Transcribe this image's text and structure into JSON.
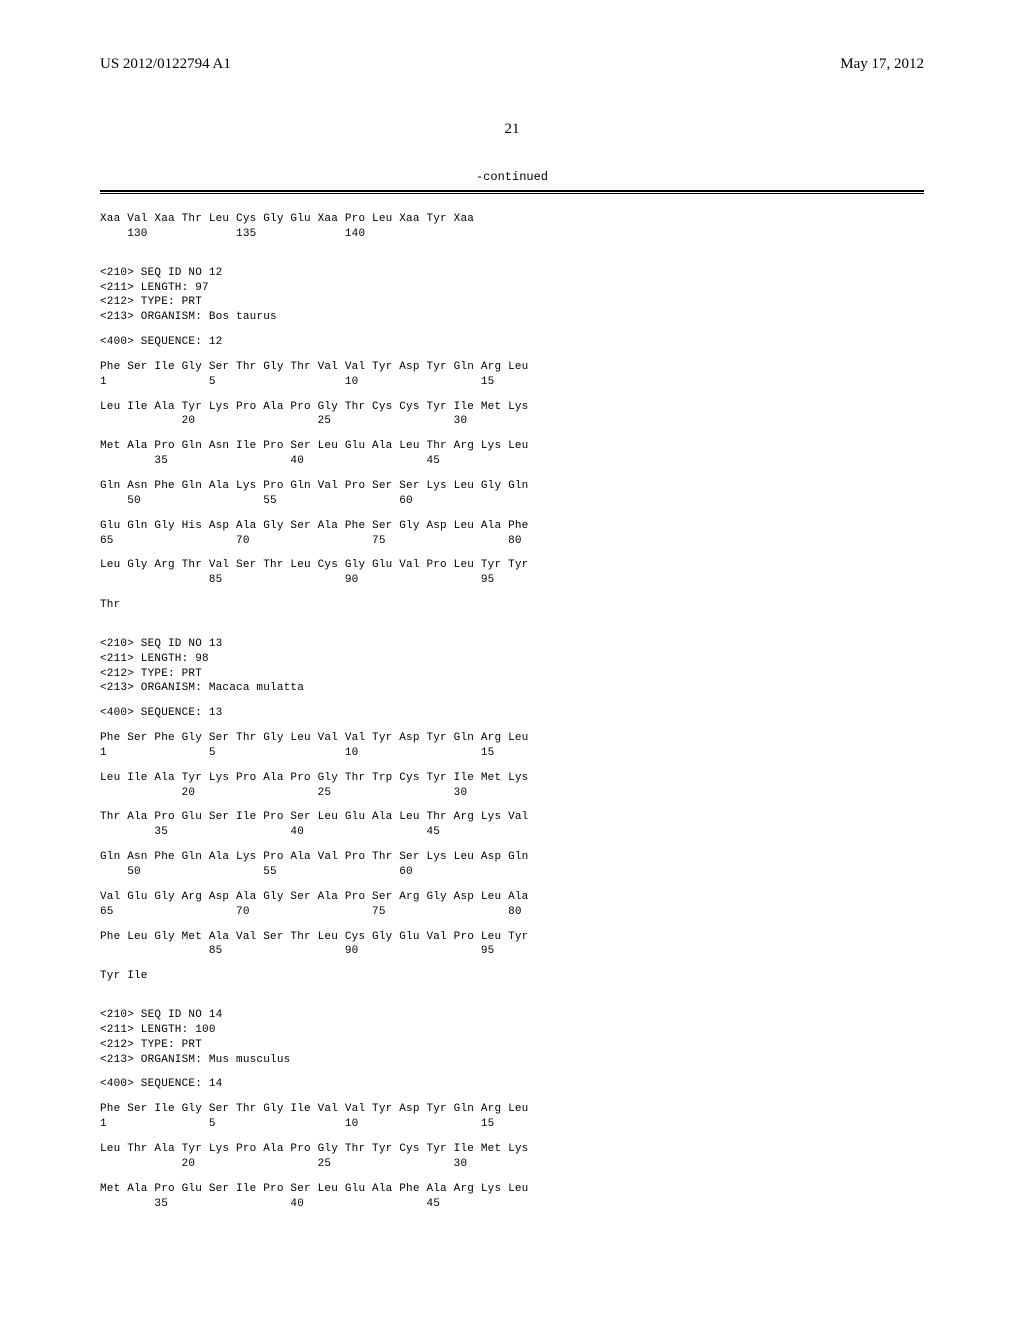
{
  "header": {
    "pub_number": "US 2012/0122794 A1",
    "pub_date": "May 17, 2012"
  },
  "page_number": "21",
  "continued_label": "-continued",
  "sequences": [
    {
      "residues": "Xaa Val Xaa Thr Leu Cys Gly Glu Xaa Pro Leu Xaa Tyr Xaa",
      "positions": "    130             135             140"
    }
  ],
  "seq_blocks": [
    {
      "meta": [
        "<210> SEQ ID NO 12",
        "<211> LENGTH: 97",
        "<212> TYPE: PRT",
        "<213> ORGANISM: Bos taurus"
      ],
      "seq_label": "<400> SEQUENCE: 12",
      "rows": [
        {
          "res": "Phe Ser Ile Gly Ser Thr Gly Thr Val Val Tyr Asp Tyr Gln Arg Leu",
          "pos": "1               5                   10                  15"
        },
        {
          "res": "Leu Ile Ala Tyr Lys Pro Ala Pro Gly Thr Cys Cys Tyr Ile Met Lys",
          "pos": "            20                  25                  30"
        },
        {
          "res": "Met Ala Pro Gln Asn Ile Pro Ser Leu Glu Ala Leu Thr Arg Lys Leu",
          "pos": "        35                  40                  45"
        },
        {
          "res": "Gln Asn Phe Gln Ala Lys Pro Gln Val Pro Ser Ser Lys Leu Gly Gln",
          "pos": "    50                  55                  60"
        },
        {
          "res": "Glu Gln Gly His Asp Ala Gly Ser Ala Phe Ser Gly Asp Leu Ala Phe",
          "pos": "65                  70                  75                  80"
        },
        {
          "res": "Leu Gly Arg Thr Val Ser Thr Leu Cys Gly Glu Val Pro Leu Tyr Tyr",
          "pos": "                85                  90                  95"
        },
        {
          "res": "Thr",
          "pos": ""
        }
      ]
    },
    {
      "meta": [
        "<210> SEQ ID NO 13",
        "<211> LENGTH: 98",
        "<212> TYPE: PRT",
        "<213> ORGANISM: Macaca mulatta"
      ],
      "seq_label": "<400> SEQUENCE: 13",
      "rows": [
        {
          "res": "Phe Ser Phe Gly Ser Thr Gly Leu Val Val Tyr Asp Tyr Gln Arg Leu",
          "pos": "1               5                   10                  15"
        },
        {
          "res": "Leu Ile Ala Tyr Lys Pro Ala Pro Gly Thr Trp Cys Tyr Ile Met Lys",
          "pos": "            20                  25                  30"
        },
        {
          "res": "Thr Ala Pro Glu Ser Ile Pro Ser Leu Glu Ala Leu Thr Arg Lys Val",
          "pos": "        35                  40                  45"
        },
        {
          "res": "Gln Asn Phe Gln Ala Lys Pro Ala Val Pro Thr Ser Lys Leu Asp Gln",
          "pos": "    50                  55                  60"
        },
        {
          "res": "Val Glu Gly Arg Asp Ala Gly Ser Ala Pro Ser Arg Gly Asp Leu Ala",
          "pos": "65                  70                  75                  80"
        },
        {
          "res": "Phe Leu Gly Met Ala Val Ser Thr Leu Cys Gly Glu Val Pro Leu Tyr",
          "pos": "                85                  90                  95"
        },
        {
          "res": "Tyr Ile",
          "pos": ""
        }
      ]
    },
    {
      "meta": [
        "<210> SEQ ID NO 14",
        "<211> LENGTH: 100",
        "<212> TYPE: PRT",
        "<213> ORGANISM: Mus musculus"
      ],
      "seq_label": "<400> SEQUENCE: 14",
      "rows": [
        {
          "res": "Phe Ser Ile Gly Ser Thr Gly Ile Val Val Tyr Asp Tyr Gln Arg Leu",
          "pos": "1               5                   10                  15"
        },
        {
          "res": "Leu Thr Ala Tyr Lys Pro Ala Pro Gly Thr Tyr Cys Tyr Ile Met Lys",
          "pos": "            20                  25                  30"
        },
        {
          "res": "Met Ala Pro Glu Ser Ile Pro Ser Leu Glu Ala Phe Ala Arg Lys Leu",
          "pos": "        35                  40                  45"
        }
      ]
    }
  ]
}
